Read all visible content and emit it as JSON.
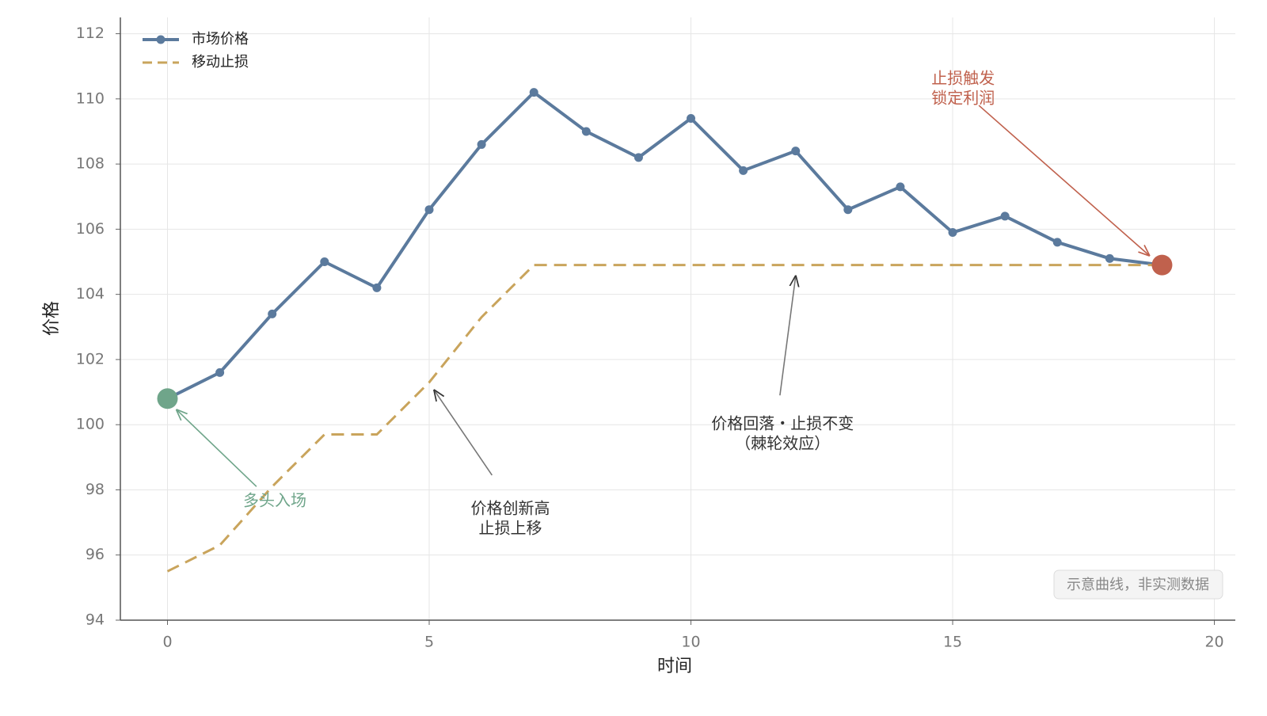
{
  "chart_data": {
    "type": "line",
    "x": [
      0,
      1,
      2,
      3,
      4,
      5,
      6,
      7,
      8,
      9,
      10,
      11,
      12,
      13,
      14,
      15,
      16,
      17,
      18,
      19
    ],
    "series": [
      {
        "name": "市场价格",
        "color": "#5b7a9d",
        "style": "solid-marker",
        "values": [
          100.8,
          101.6,
          103.4,
          105.0,
          104.2,
          106.6,
          108.6,
          110.2,
          109.0,
          108.2,
          109.4,
          107.8,
          108.4,
          106.6,
          107.3,
          105.9,
          106.4,
          105.6,
          105.1,
          104.9
        ]
      },
      {
        "name": "移动止损",
        "color": "#c9a45c",
        "style": "dashed",
        "values": [
          95.5,
          96.3,
          98.1,
          99.7,
          99.7,
          101.3,
          103.3,
          104.9,
          104.9,
          104.9,
          104.9,
          104.9,
          104.9,
          104.9,
          104.9,
          104.9,
          104.9,
          104.9,
          104.9,
          104.9
        ]
      }
    ],
    "xlabel": "时间",
    "ylabel": "价格",
    "xlim": [
      -0.9,
      20.4
    ],
    "ylim": [
      94,
      112.5
    ],
    "xticks": [
      0,
      5,
      10,
      15,
      20
    ],
    "yticks": [
      94,
      96,
      98,
      100,
      102,
      104,
      106,
      108,
      110,
      112
    ],
    "grid": true,
    "legend": "upper-left",
    "entry_color": "#6fa58a",
    "exit_color": "#c0614d",
    "annotations": [
      {
        "lines": [
          "多头入场"
        ],
        "color": "#6fa58a"
      },
      {
        "lines": [
          "价格创新高",
          "止损上移"
        ],
        "color": "#333333"
      },
      {
        "lines": [
          "价格回落・止损不变",
          "（棘轮效应）"
        ],
        "color": "#333333"
      },
      {
        "lines": [
          "止损触发",
          "锁定利润"
        ],
        "color": "#c0614d"
      }
    ],
    "note": "示意曲线，非实测数据"
  }
}
